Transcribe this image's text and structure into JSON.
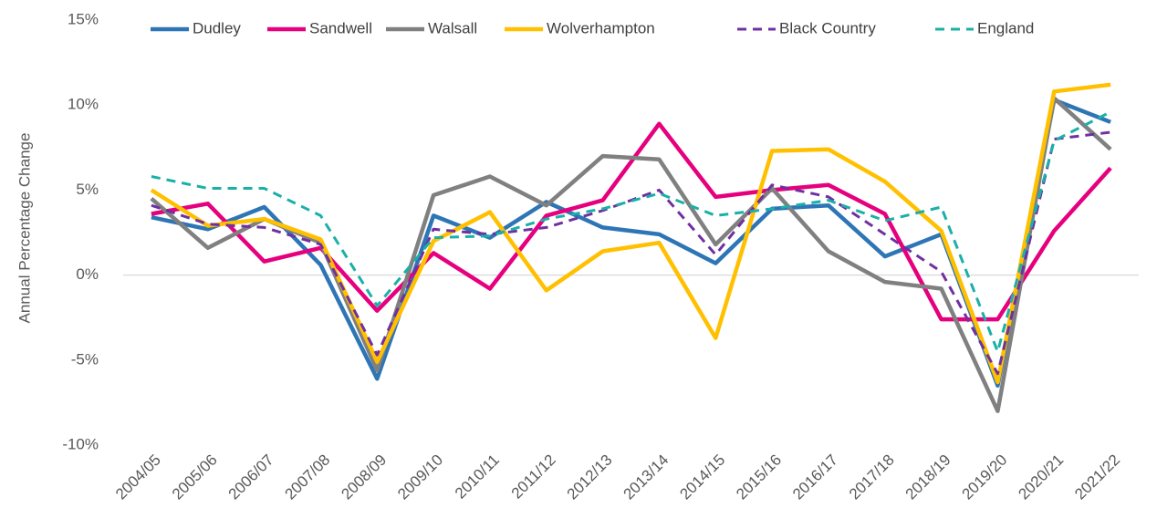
{
  "chart_data": {
    "type": "line",
    "y_label": "Annual Percentage Change",
    "categories": [
      "2004/05",
      "2005/06",
      "2006/07",
      "2007/08",
      "2008/09",
      "2009/10",
      "2010/11",
      "2011/12",
      "2012/13",
      "2013/14",
      "2014/15",
      "2015/16",
      "2016/17",
      "2017/18",
      "2018/19",
      "2019/20",
      "2020/21",
      "2021/22"
    ],
    "series": [
      {
        "name": "Dudley",
        "color": "#2e75b6",
        "dashed": false,
        "values": [
          3.4,
          2.7,
          4.0,
          0.6,
          -6.1,
          3.5,
          2.2,
          4.3,
          2.8,
          2.4,
          0.7,
          3.9,
          4.1,
          1.1,
          2.4,
          -6.5,
          10.3,
          9.0
        ]
      },
      {
        "name": "Sandwell",
        "color": "#e6007e",
        "dashed": false,
        "values": [
          3.6,
          4.2,
          0.8,
          1.6,
          -2.1,
          1.3,
          -0.8,
          3.5,
          4.4,
          8.9,
          4.6,
          5.0,
          5.3,
          3.6,
          -2.6,
          -2.6,
          2.6,
          6.3
        ]
      },
      {
        "name": "Walsall",
        "color": "#808080",
        "dashed": false,
        "values": [
          4.5,
          1.6,
          3.3,
          1.9,
          -5.6,
          4.7,
          5.8,
          4.1,
          7.0,
          6.8,
          1.8,
          5.1,
          1.4,
          -0.4,
          -0.8,
          -8.0,
          10.4,
          7.4
        ]
      },
      {
        "name": "Wolverhampton",
        "color": "#ffc000",
        "dashed": false,
        "values": [
          5.0,
          2.9,
          3.3,
          2.1,
          -5.1,
          2.0,
          3.7,
          -0.9,
          1.4,
          1.9,
          -3.7,
          7.3,
          7.4,
          5.5,
          2.6,
          -6.3,
          10.8,
          11.2
        ]
      },
      {
        "name": "Black Country",
        "color": "#7030a0",
        "dashed": true,
        "values": [
          4.1,
          3.0,
          2.8,
          1.8,
          -4.7,
          2.7,
          2.4,
          2.8,
          3.8,
          5.0,
          1.2,
          5.3,
          4.6,
          2.4,
          0.2,
          -5.8,
          8.0,
          8.4
        ]
      },
      {
        "name": "England",
        "color": "#1ab0a8",
        "dashed": true,
        "values": [
          5.8,
          5.1,
          5.1,
          3.5,
          -1.8,
          2.2,
          2.3,
          3.3,
          3.9,
          4.8,
          3.5,
          3.9,
          4.4,
          3.2,
          4.0,
          -4.5,
          7.9,
          9.6
        ]
      }
    ],
    "ylim": [
      -10,
      15
    ],
    "yticks": [
      {
        "value": -10,
        "label": "-10%"
      },
      {
        "value": -5,
        "label": "-5%"
      },
      {
        "value": 0,
        "label": "0%"
      },
      {
        "value": 5,
        "label": "5%"
      },
      {
        "value": 10,
        "label": "10%"
      },
      {
        "value": 15,
        "label": "15%"
      }
    ],
    "legend": "top"
  }
}
